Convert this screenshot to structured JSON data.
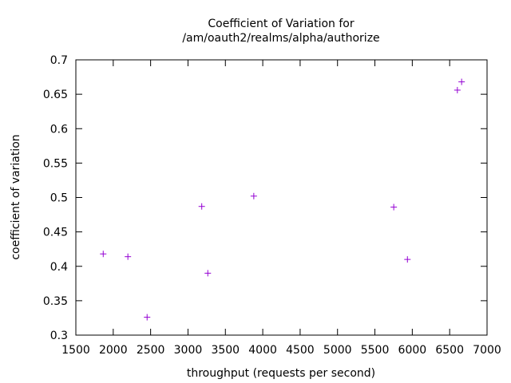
{
  "chart_data": {
    "type": "scatter",
    "title_lines": [
      "Coefficient of Variation for",
      "/am/oauth2/realms/alpha/authorize"
    ],
    "xlabel": "throughput (requests per second)",
    "ylabel": "coefficient of variation",
    "xlim": [
      1500,
      7000
    ],
    "ylim": [
      0.3,
      0.7
    ],
    "x_ticks": [
      1500,
      2000,
      2500,
      3000,
      3500,
      4000,
      4500,
      5000,
      5500,
      6000,
      6500,
      7000
    ],
    "x_tick_labels": [
      "1500",
      "2000",
      "2500",
      "3000",
      "3500",
      "4000",
      "4500",
      "5000",
      "5500",
      "6000",
      "6500",
      "7000"
    ],
    "y_ticks": [
      0.3,
      0.35,
      0.4,
      0.45,
      0.5,
      0.55,
      0.6,
      0.65,
      0.7
    ],
    "y_tick_labels": [
      "0.3",
      "0.35",
      "0.4",
      "0.45",
      "0.5",
      "0.55",
      "0.6",
      "0.65",
      "0.7"
    ],
    "grid": false,
    "marker": "+",
    "marker_color": "#9400d3",
    "points": [
      {
        "x": 1866,
        "y": 0.418
      },
      {
        "x": 2196,
        "y": 0.414
      },
      {
        "x": 2453,
        "y": 0.326
      },
      {
        "x": 3184,
        "y": 0.487
      },
      {
        "x": 3265,
        "y": 0.39
      },
      {
        "x": 3880,
        "y": 0.502
      },
      {
        "x": 5752,
        "y": 0.486
      },
      {
        "x": 5935,
        "y": 0.41
      },
      {
        "x": 6603,
        "y": 0.656
      },
      {
        "x": 6660,
        "y": 0.668
      }
    ]
  }
}
